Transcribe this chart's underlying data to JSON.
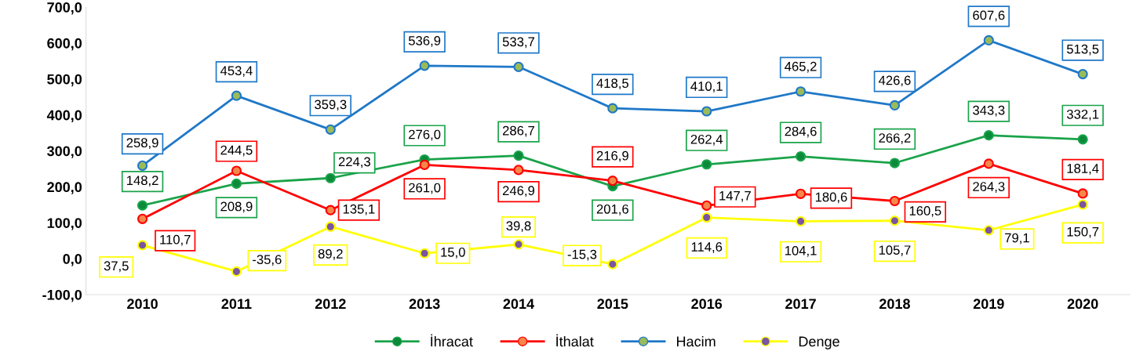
{
  "chart_data": {
    "type": "line",
    "categories": [
      "2010",
      "2011",
      "2012",
      "2013",
      "2014",
      "2015",
      "2016",
      "2017",
      "2018",
      "2019",
      "2020"
    ],
    "series": [
      {
        "name": "İhracat",
        "color": "#1aa34a",
        "values": [
          148.2,
          208.9,
          224.3,
          276.0,
          286.7,
          201.6,
          262.4,
          284.6,
          266.2,
          343.3,
          332.1
        ],
        "value_labels": [
          "148,2",
          "208,9",
          "224,3",
          "276,0",
          "286,7",
          "201,6",
          "262,4",
          "284,6",
          "266,2",
          "343,3",
          "332,1"
        ]
      },
      {
        "name": "İthalat",
        "color": "#ff0000",
        "values": [
          110.7,
          244.5,
          135.1,
          261.0,
          246.9,
          216.9,
          147.7,
          180.6,
          160.5,
          264.3,
          181.4
        ],
        "value_labels": [
          "110,7",
          "244,5",
          "135,1",
          "261,0",
          "246,9",
          "216,9",
          "147,7",
          "180,6",
          "160,5",
          "264,3",
          "181,4"
        ]
      },
      {
        "name": "Hacim",
        "color": "#1f78c8",
        "values": [
          258.9,
          453.4,
          359.3,
          536.9,
          533.7,
          418.5,
          410.1,
          465.2,
          426.6,
          607.6,
          513.5
        ],
        "value_labels": [
          "258,9",
          "453,4",
          "359,3",
          "536,9",
          "533,7",
          "418,5",
          "410,1",
          "465,2",
          "426,6",
          "607,6",
          "513,5"
        ]
      },
      {
        "name": "Denge",
        "color": "#ffff00",
        "values": [
          37.5,
          -35.6,
          89.2,
          15.0,
          39.8,
          -15.3,
          114.6,
          104.1,
          105.7,
          79.1,
          150.7
        ],
        "value_labels": [
          "37,5",
          "-35,6",
          "89,2",
          "15,0",
          "39,8",
          "-15,3",
          "114,6",
          "104,1",
          "105,7",
          "79,1",
          "150,7"
        ]
      }
    ],
    "ylim": [
      -100,
      700
    ],
    "yticks": [
      {
        "value": -100,
        "label": "-100,0"
      },
      {
        "value": 0,
        "label": "0,0"
      },
      {
        "value": 100,
        "label": "100,0"
      },
      {
        "value": 200,
        "label": "200,0"
      },
      {
        "value": 300,
        "label": "300,0"
      },
      {
        "value": 400,
        "label": "400,0"
      },
      {
        "value": 500,
        "label": "500,0"
      },
      {
        "value": 600,
        "label": "600,0"
      },
      {
        "value": 700,
        "label": "700,0"
      }
    ],
    "grid": false,
    "legend": "bottom",
    "marker": "circle",
    "line_style": "solid"
  }
}
